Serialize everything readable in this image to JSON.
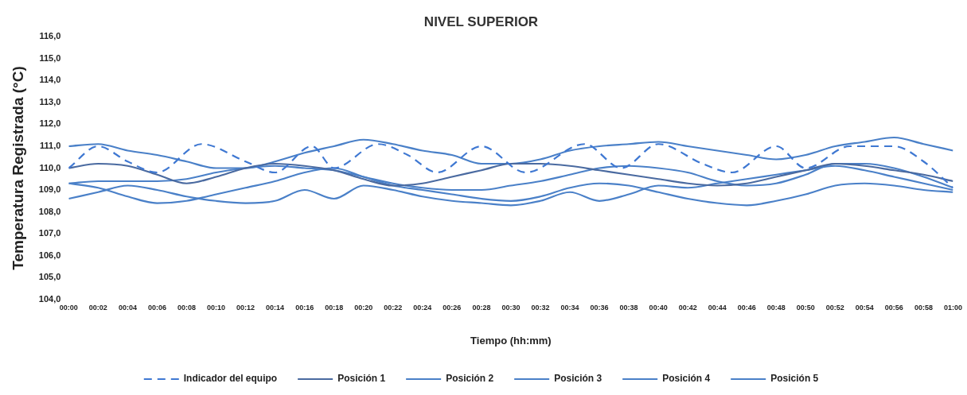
{
  "chart_data": {
    "type": "line",
    "title": "NIVEL SUPERIOR",
    "xlabel": "Tiempo (hh:mm)",
    "ylabel": "Temperatura Registrada (°C)",
    "legend": "bottom",
    "grid": false,
    "marker": "none",
    "xlim": [
      0,
      1
    ],
    "ylim": [
      104,
      116
    ],
    "yticks": [
      {
        "value": 104,
        "label": "104,0"
      },
      {
        "value": 105,
        "label": "105,0"
      },
      {
        "value": 106,
        "label": "106,0"
      },
      {
        "value": 107,
        "label": "107,0"
      },
      {
        "value": 108,
        "label": "108,0"
      },
      {
        "value": 109,
        "label": "109,0"
      },
      {
        "value": 110,
        "label": "110,0"
      },
      {
        "value": 111,
        "label": "111,0"
      },
      {
        "value": 112,
        "label": "112,0"
      },
      {
        "value": 113,
        "label": "113,0"
      },
      {
        "value": 114,
        "label": "114,0"
      },
      {
        "value": 115,
        "label": "115,0"
      },
      {
        "value": 116,
        "label": "116,0"
      }
    ],
    "xticks": [
      {
        "value": 0,
        "label": "00:00"
      },
      {
        "value": 0.0333,
        "label": "00:02"
      },
      {
        "value": 0.0667,
        "label": "00:04"
      },
      {
        "value": 0.1,
        "label": "00:06"
      },
      {
        "value": 0.1333,
        "label": "00:08"
      },
      {
        "value": 0.1667,
        "label": "00:10"
      },
      {
        "value": 0.2,
        "label": "00:12"
      },
      {
        "value": 0.2333,
        "label": "00:14"
      },
      {
        "value": 0.2667,
        "label": "00:16"
      },
      {
        "value": 0.3,
        "label": "00:18"
      },
      {
        "value": 0.3333,
        "label": "00:20"
      },
      {
        "value": 0.3667,
        "label": "00:22"
      },
      {
        "value": 0.4,
        "label": "00:24"
      },
      {
        "value": 0.4333,
        "label": "00:26"
      },
      {
        "value": 0.4667,
        "label": "00:28"
      },
      {
        "value": 0.5,
        "label": "00:30"
      },
      {
        "value": 0.5333,
        "label": "00:32"
      },
      {
        "value": 0.5667,
        "label": "00:34"
      },
      {
        "value": 0.6,
        "label": "00:36"
      },
      {
        "value": 0.6333,
        "label": "00:38"
      },
      {
        "value": 0.6667,
        "label": "00:40"
      },
      {
        "value": 0.7,
        "label": "00:42"
      },
      {
        "value": 0.7333,
        "label": "00:44"
      },
      {
        "value": 0.7667,
        "label": "00:46"
      },
      {
        "value": 0.8,
        "label": "00:48"
      },
      {
        "value": 0.8333,
        "label": "00:50"
      },
      {
        "value": 0.8667,
        "label": "00:52"
      },
      {
        "value": 0.9,
        "label": "00:54"
      },
      {
        "value": 0.9333,
        "label": "00:56"
      },
      {
        "value": 0.9667,
        "label": "00:58"
      },
      {
        "value": 1,
        "label": "01:00"
      }
    ],
    "x": [
      0,
      0.0333,
      0.0667,
      0.1,
      0.1333,
      0.1667,
      0.2,
      0.2333,
      0.2667,
      0.3,
      0.3333,
      0.3667,
      0.4,
      0.4333,
      0.4667,
      0.5,
      0.5333,
      0.5667,
      0.6,
      0.6333,
      0.6667,
      0.7,
      0.7333,
      0.7667,
      0.8,
      0.8333,
      0.8667,
      0.9,
      0.9333,
      0.9667,
      1
    ],
    "series": [
      {
        "name": "Indicador del equipo",
        "color": "#3f78d2",
        "line_style": "dashed",
        "x": [
          0,
          0.0333,
          0.0667,
          0.1,
          0.15,
          0.2,
          0.2333,
          0.275,
          0.3,
          0.35,
          0.3833,
          0.4167,
          0.4667,
          0.5167,
          0.5833,
          0.625,
          0.6667,
          0.7167,
          0.75,
          0.8,
          0.8333,
          0.8833,
          0.9333,
          0.9667,
          1
        ],
        "values": [
          110.0,
          111.0,
          110.3,
          109.8,
          111.1,
          110.3,
          109.8,
          111.0,
          110.0,
          111.1,
          110.6,
          109.8,
          111.0,
          109.8,
          111.1,
          110.0,
          111.1,
          110.2,
          109.8,
          111.0,
          110.0,
          111.0,
          111.0,
          110.3,
          109.1
        ]
      },
      {
        "name": "Posición 1",
        "color": "#4a6aa0",
        "line_style": "solid",
        "values": [
          110.0,
          110.2,
          110.1,
          109.7,
          109.3,
          109.6,
          110.0,
          110.2,
          110.1,
          109.9,
          109.5,
          109.2,
          109.3,
          109.6,
          109.9,
          110.2,
          110.2,
          110.1,
          109.9,
          109.7,
          109.5,
          109.3,
          109.2,
          109.3,
          109.6,
          109.9,
          110.2,
          110.1,
          109.9,
          109.7,
          109.4
        ]
      },
      {
        "name": "Posición 2",
        "color": "#4a80c8",
        "line_style": "solid",
        "values": [
          111.0,
          111.1,
          110.8,
          110.6,
          110.3,
          110.0,
          110.0,
          110.3,
          110.7,
          111.0,
          111.3,
          111.1,
          110.8,
          110.6,
          110.2,
          110.2,
          110.4,
          110.8,
          111.0,
          111.1,
          111.2,
          111.0,
          110.8,
          110.6,
          110.4,
          110.6,
          111.0,
          111.2,
          111.4,
          111.1,
          110.8
        ]
      },
      {
        "name": "Posición 3",
        "color": "#4a80c8",
        "line_style": "solid",
        "values": [
          109.3,
          109.4,
          109.4,
          109.4,
          109.5,
          109.8,
          110.0,
          110.1,
          110.0,
          109.9,
          109.6,
          109.3,
          109.1,
          109.0,
          109.0,
          109.2,
          109.4,
          109.7,
          110.0,
          110.1,
          110.0,
          109.8,
          109.4,
          109.2,
          109.3,
          109.7,
          110.2,
          110.2,
          110.0,
          109.6,
          109.1
        ]
      },
      {
        "name": "Posición 4",
        "color": "#4a80c8",
        "line_style": "solid",
        "values": [
          109.3,
          109.1,
          108.7,
          108.4,
          108.5,
          108.8,
          109.1,
          109.4,
          109.8,
          110.0,
          109.6,
          109.2,
          109.0,
          108.8,
          108.6,
          108.5,
          108.7,
          109.1,
          109.3,
          109.2,
          108.9,
          108.6,
          108.4,
          108.3,
          108.5,
          108.8,
          109.2,
          109.3,
          109.2,
          109.0,
          108.9
        ]
      },
      {
        "name": "Posición 5",
        "color": "#4a80c8",
        "line_style": "solid",
        "values": [
          108.6,
          108.9,
          109.2,
          109.0,
          108.7,
          108.5,
          108.4,
          108.5,
          109.0,
          108.6,
          109.2,
          109.0,
          108.7,
          108.5,
          108.4,
          108.3,
          108.5,
          108.9,
          108.5,
          108.8,
          109.2,
          109.1,
          109.3,
          109.5,
          109.7,
          109.9,
          110.1,
          109.9,
          109.6,
          109.3,
          109.0
        ]
      }
    ]
  }
}
